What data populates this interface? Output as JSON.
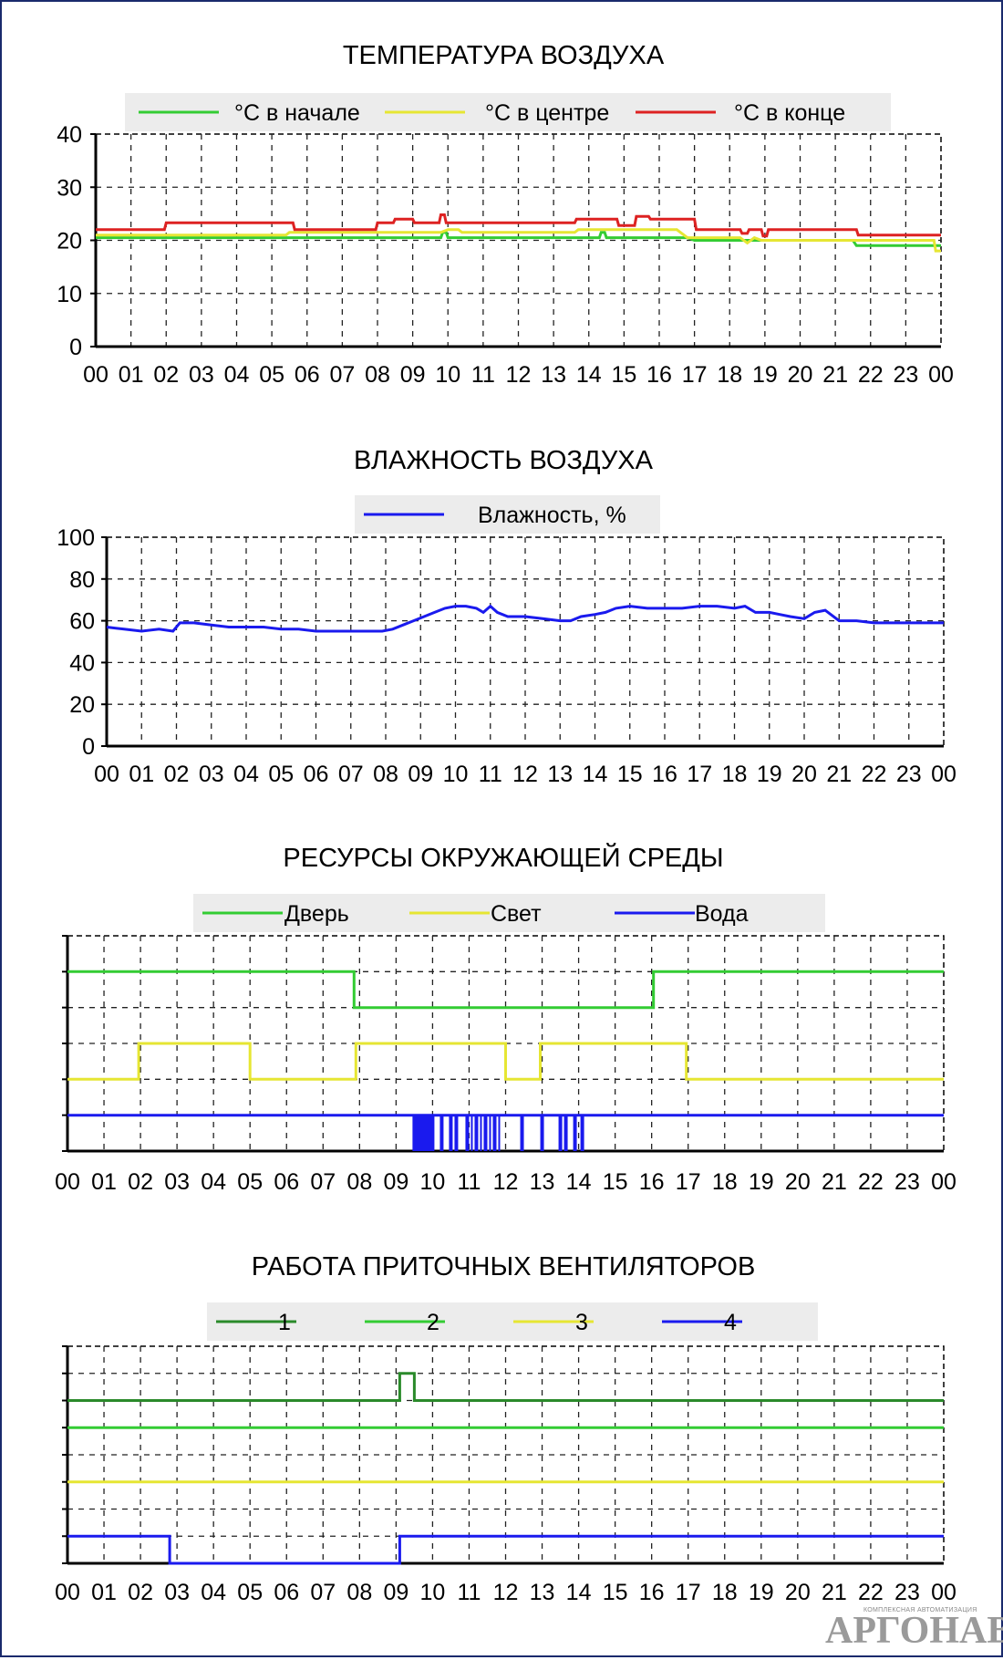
{
  "colors": {
    "green": "#33cc33",
    "yellow": "#e6e633",
    "red": "#dd2222",
    "blue": "#1a1aee",
    "darkgreen": "#2a8a2a"
  },
  "chart_data": [
    {
      "type": "line",
      "title": "ТЕМПЕРАТУРА ВОЗДУХА",
      "x_ticks": [
        "00",
        "01",
        "02",
        "03",
        "04",
        "05",
        "06",
        "07",
        "08",
        "09",
        "10",
        "11",
        "12",
        "13",
        "14",
        "15",
        "16",
        "17",
        "18",
        "19",
        "20",
        "21",
        "22",
        "23",
        "00"
      ],
      "xlim": [
        0,
        24
      ],
      "ylim": [
        0,
        40
      ],
      "y_ticks": [
        "0",
        "10",
        "20",
        "30",
        "40"
      ],
      "legend": "top",
      "grid": true,
      "series": [
        {
          "name": "°C в начале",
          "color": "green",
          "x": [
            0,
            9.8,
            9.85,
            9.95,
            10.0,
            14.3,
            14.35,
            14.45,
            14.5,
            15.5,
            16.5,
            16.8,
            17.0,
            21.5,
            21.6,
            24.0
          ],
          "y": [
            20.5,
            20.5,
            21.5,
            21.5,
            20.5,
            20.5,
            21.5,
            21.5,
            20.5,
            20.5,
            20.5,
            20.5,
            20.0,
            20.0,
            19.0,
            19.0
          ]
        },
        {
          "name": "°C в центре",
          "color": "yellow",
          "x": [
            0,
            5.4,
            5.5,
            7.9,
            8.0,
            9.8,
            10.0,
            10.3,
            10.4,
            13.6,
            13.7,
            16.5,
            16.8,
            18.3,
            18.5,
            18.7,
            18.9,
            19.2,
            23.8,
            23.85,
            24.0
          ],
          "y": [
            21.0,
            21.0,
            21.5,
            21.5,
            21.5,
            21.5,
            22.0,
            22.0,
            21.5,
            21.5,
            22.0,
            22.0,
            20.5,
            20.5,
            19.5,
            20.5,
            20.0,
            20.0,
            20.0,
            18.0,
            18.0
          ]
        },
        {
          "name": "°C в конце",
          "color": "red",
          "x": [
            0,
            1.95,
            2.0,
            5.6,
            5.65,
            7.95,
            8.0,
            8.45,
            8.5,
            9.0,
            9.05,
            9.75,
            9.8,
            9.9,
            9.95,
            10.3,
            10.35,
            13.6,
            13.65,
            14.8,
            14.85,
            15.3,
            15.35,
            15.7,
            15.75,
            17.0,
            17.05,
            18.3,
            18.35,
            18.5,
            18.55,
            18.9,
            18.95,
            19.05,
            19.1,
            19.3,
            19.35,
            21.6,
            21.65,
            24.0
          ],
          "y": [
            22.0,
            22.0,
            23.3,
            23.3,
            22.0,
            22.0,
            23.3,
            23.3,
            24.0,
            24.0,
            23.3,
            23.3,
            24.8,
            24.8,
            23.3,
            23.3,
            23.3,
            23.3,
            24.0,
            24.0,
            22.8,
            22.8,
            24.5,
            24.5,
            24.0,
            24.0,
            22.0,
            22.0,
            21.3,
            21.3,
            22.0,
            22.0,
            20.8,
            20.8,
            22.0,
            22.0,
            22.0,
            22.0,
            21.0,
            21.0
          ]
        }
      ]
    },
    {
      "type": "line",
      "title": "ВЛАЖНОСТЬ  ВОЗДУХА",
      "x_ticks": [
        "00",
        "01",
        "02",
        "03",
        "04",
        "05",
        "06",
        "07",
        "08",
        "09",
        "10",
        "11",
        "12",
        "13",
        "14",
        "15",
        "16",
        "17",
        "18",
        "19",
        "20",
        "21",
        "22",
        "23",
        "00"
      ],
      "xlim": [
        0,
        24
      ],
      "ylim": [
        0,
        100
      ],
      "y_ticks": [
        "0",
        "20",
        "40",
        "60",
        "80",
        "100"
      ],
      "legend": "top",
      "grid": true,
      "series": [
        {
          "name": "Влажность, %",
          "color": "blue",
          "x": [
            0,
            0.5,
            1.0,
            1.5,
            1.9,
            2.1,
            2.5,
            3.0,
            3.5,
            4.0,
            4.5,
            5.0,
            5.5,
            6.0,
            6.5,
            7.0,
            7.5,
            7.9,
            8.2,
            8.5,
            8.8,
            9.1,
            9.4,
            9.7,
            10.0,
            10.3,
            10.6,
            10.8,
            11.0,
            11.2,
            11.5,
            12.0,
            12.5,
            13.0,
            13.3,
            13.6,
            14.0,
            14.3,
            14.6,
            15.0,
            15.5,
            16.0,
            16.5,
            17.0,
            17.5,
            18.0,
            18.3,
            18.6,
            19.0,
            19.3,
            19.6,
            20.0,
            20.3,
            20.6,
            21.0,
            21.5,
            22.0,
            22.5,
            23.0,
            23.5,
            24.0
          ],
          "y": [
            57,
            56,
            55,
            56,
            55,
            59,
            59,
            58,
            57,
            57,
            57,
            56,
            56,
            55,
            55,
            55,
            55,
            55,
            56,
            58,
            60,
            62,
            64,
            66,
            67,
            67,
            66,
            64,
            67,
            64,
            62,
            62,
            61,
            60,
            60,
            62,
            63,
            64,
            66,
            67,
            66,
            66,
            66,
            67,
            67,
            66,
            67,
            64,
            64,
            63,
            62,
            61,
            64,
            65,
            60,
            60,
            59,
            59,
            59,
            59,
            59
          ]
        }
      ]
    },
    {
      "type": "line",
      "title": "РЕСУРСЫ ОКРУЖАЮЩЕЙ СРЕДЫ",
      "x_ticks": [
        "00",
        "01",
        "02",
        "03",
        "04",
        "05",
        "06",
        "07",
        "08",
        "09",
        "10",
        "11",
        "12",
        "13",
        "14",
        "15",
        "16",
        "17",
        "18",
        "19",
        "20",
        "21",
        "22",
        "23",
        "00"
      ],
      "xlim": [
        0,
        24
      ],
      "ylim": [
        0,
        6
      ],
      "legend": "top",
      "grid": true,
      "series": [
        {
          "name": "Дверь",
          "color": "green",
          "x": [
            0,
            7.85,
            7.85,
            16.05,
            16.05,
            24
          ],
          "y": [
            5,
            5,
            4,
            4,
            5,
            5
          ]
        },
        {
          "name": "Свет",
          "color": "yellow",
          "x": [
            0,
            1.95,
            1.95,
            5.0,
            5.0,
            7.9,
            7.9,
            12.0,
            12.0,
            12.95,
            12.95,
            16.95,
            16.95,
            24
          ],
          "y": [
            2,
            2,
            3,
            3,
            2,
            2,
            3,
            3,
            2,
            2,
            3,
            3,
            2,
            2
          ]
        },
        {
          "name": "Вода",
          "color": "blue",
          "x": [
            0,
            24
          ],
          "y": [
            1,
            1
          ],
          "pulses": [
            [
              9.45,
              10.05
            ],
            [
              10.2,
              10.3
            ],
            [
              10.45,
              10.55
            ],
            [
              10.6,
              10.7
            ],
            [
              10.9,
              11.0
            ],
            [
              11.05,
              11.1
            ],
            [
              11.15,
              11.25
            ],
            [
              11.3,
              11.35
            ],
            [
              11.4,
              11.5
            ],
            [
              11.55,
              11.6
            ],
            [
              11.65,
              11.75
            ],
            [
              11.8,
              11.85
            ],
            [
              12.4,
              12.5
            ],
            [
              12.95,
              13.05
            ],
            [
              13.45,
              13.55
            ],
            [
              13.6,
              13.7
            ],
            [
              13.85,
              13.95
            ],
            [
              14.05,
              14.15
            ]
          ],
          "low": 0
        }
      ]
    },
    {
      "type": "line",
      "title": "РАБОТА ПРИТОЧНЫХ ВЕНТИЛЯТОРОВ",
      "x_ticks": [
        "00",
        "01",
        "02",
        "03",
        "04",
        "05",
        "06",
        "07",
        "08",
        "09",
        "10",
        "11",
        "12",
        "13",
        "14",
        "15",
        "16",
        "17",
        "18",
        "19",
        "20",
        "21",
        "22",
        "23",
        "00"
      ],
      "xlim": [
        0,
        24
      ],
      "ylim": [
        0,
        8
      ],
      "legend": "top",
      "grid": true,
      "series": [
        {
          "name": "1",
          "color": "darkgreen",
          "x": [
            0,
            9.1,
            9.1,
            9.5,
            9.5,
            24
          ],
          "y": [
            6,
            6,
            7,
            7,
            6,
            6
          ]
        },
        {
          "name": "2",
          "color": "green",
          "x": [
            0,
            24
          ],
          "y": [
            5,
            5
          ]
        },
        {
          "name": "3",
          "color": "yellow",
          "x": [
            0,
            24
          ],
          "y": [
            3,
            3
          ]
        },
        {
          "name": "4",
          "color": "blue",
          "x": [
            0,
            2.8,
            2.8,
            9.1,
            9.1,
            24
          ],
          "y": [
            1,
            1,
            0,
            0,
            1,
            1
          ]
        }
      ]
    }
  ],
  "logo": {
    "caption": "КОМПЛЕКСНАЯ АВТОМАТИЗАЦИЯ",
    "word": "АРГОНАВТ"
  }
}
